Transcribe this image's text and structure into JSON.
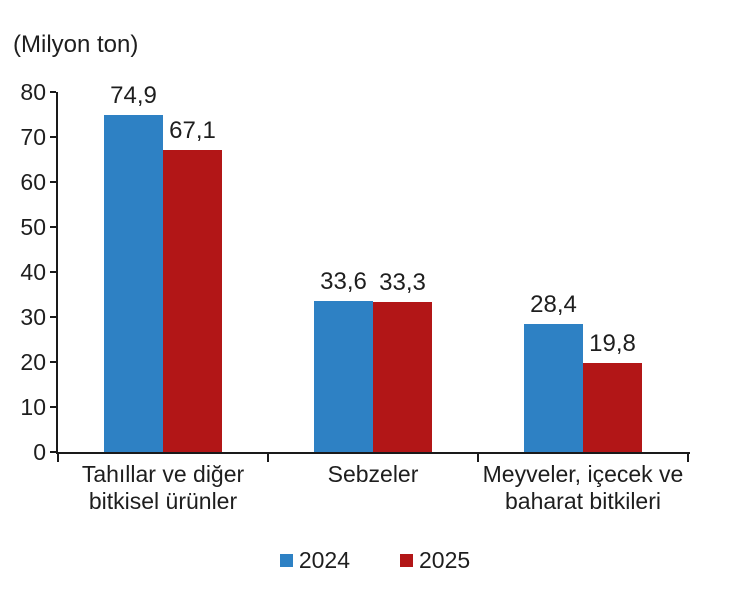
{
  "unit_label": "(Milyon ton)",
  "colors": {
    "series_2024": "#2E81C4",
    "series_2025": "#B21617",
    "axis": "#1A1A1A",
    "text": "#1E1E1E"
  },
  "chart_data": {
    "type": "bar",
    "title": "(Milyon ton)",
    "categories": [
      "Tahıllar ve diğer\nbitkisel ürünler",
      "Sebzeler",
      "Meyveler, içecek ve\nbaharat bitkileri"
    ],
    "series": [
      {
        "name": "2024",
        "color": "#2E81C4",
        "values": [
          74.9,
          33.6,
          28.4
        ],
        "value_labels": [
          "74,9",
          "33,6",
          "28,4"
        ]
      },
      {
        "name": "2025",
        "color": "#B21617",
        "values": [
          67.1,
          33.3,
          19.8
        ],
        "value_labels": [
          "67,1",
          "33,3",
          "19,8"
        ]
      }
    ],
    "xlabel": "",
    "ylabel": "(Milyon ton)",
    "ylim": [
      0,
      80
    ],
    "yticks": [
      0,
      10,
      20,
      30,
      40,
      50,
      60,
      70,
      80
    ],
    "grid": false,
    "legend_position": "bottom",
    "legend_labels": [
      "2024",
      "2025"
    ]
  }
}
